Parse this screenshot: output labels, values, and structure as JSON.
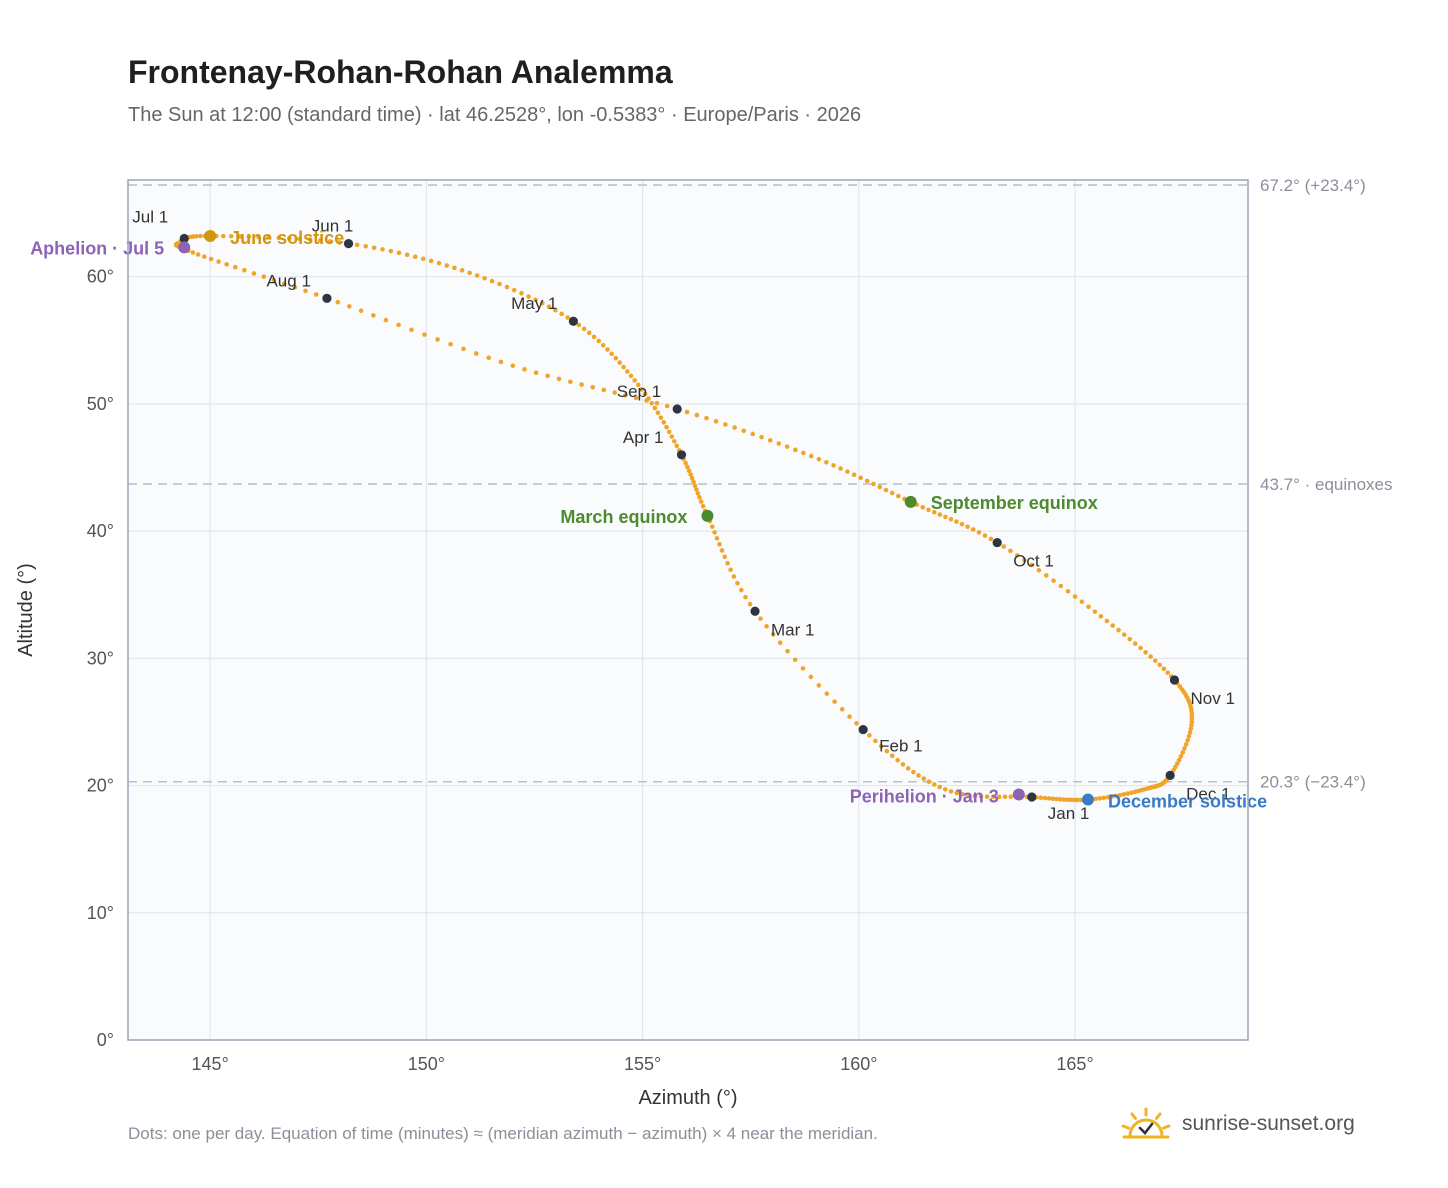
{
  "page": {
    "title": "Frontenay-Rohan-Rohan Analemma",
    "subtitle": "The Sun at 12:00 (standard time) · lat 46.2528°, lon -0.5383° · Europe/Paris · 2026",
    "footnote": "Dots: one per day. Equation of time (minutes) ≈ (meridian azimuth − azimuth) × 4 near the meridian.",
    "brand": "sunrise-sunset.org"
  },
  "colors": {
    "curve": "#f0a52a",
    "month_dot": "#2e3440",
    "solstice_june": "#d4950e",
    "solstice_december": "#3a7cc4",
    "equinox": "#4e8a2e",
    "apsis": "#8e63b5",
    "grid": "#e3e7ec",
    "plot_bg": "#f9fbfd",
    "frame": "#9aa6b4",
    "ref_line": "#b9c2cc"
  },
  "icons": {
    "brand": "sun-logo-icon"
  },
  "chart_data": {
    "type": "scatter",
    "xlabel": "Azimuth (°)",
    "ylabel": "Altitude (°)",
    "xlim": [
      143.1,
      169.0
    ],
    "ylim": [
      0,
      67.6
    ],
    "xticks": [
      145,
      150,
      155,
      160,
      165
    ],
    "xtick_labels": [
      "145°",
      "150°",
      "155°",
      "160°",
      "165°"
    ],
    "yticks": [
      0,
      10,
      20,
      30,
      40,
      50,
      60
    ],
    "ytick_labels": [
      "0°",
      "10°",
      "20°",
      "30°",
      "40°",
      "50°",
      "60°"
    ],
    "grid": true,
    "reference_lines": [
      {
        "y": 67.2,
        "label": "67.2° (+23.4°)"
      },
      {
        "y": 43.7,
        "label": "43.7° · equinoxes"
      },
      {
        "y": 20.3,
        "label": "20.3° (−23.4°)"
      }
    ],
    "analemma_path": [
      [
        164.0,
        19.1
      ],
      [
        162.0,
        19.7
      ],
      [
        160.1,
        24.4
      ],
      [
        157.6,
        33.7
      ],
      [
        156.5,
        41.2
      ],
      [
        155.9,
        46.0
      ],
      [
        154.9,
        51.5
      ],
      [
        153.4,
        56.5
      ],
      [
        151.0,
        60.3
      ],
      [
        148.2,
        62.6
      ],
      [
        145.0,
        63.2
      ],
      [
        144.3,
        62.7
      ],
      [
        144.6,
        61.9
      ],
      [
        147.7,
        58.3
      ],
      [
        152.0,
        53.0
      ],
      [
        155.8,
        49.6
      ],
      [
        158.9,
        45.9
      ],
      [
        161.2,
        42.3
      ],
      [
        163.2,
        39.1
      ],
      [
        165.6,
        33.3
      ],
      [
        167.3,
        28.3
      ],
      [
        167.7,
        25.0
      ],
      [
        167.2,
        20.8
      ],
      [
        166.6,
        19.7
      ],
      [
        165.3,
        18.9
      ],
      [
        164.0,
        19.1
      ]
    ],
    "day_count": 365,
    "months": [
      {
        "label": "Jan 1",
        "az": 164.0,
        "alt": 19.1
      },
      {
        "label": "Feb 1",
        "az": 160.1,
        "alt": 24.4
      },
      {
        "label": "Mar 1",
        "az": 157.6,
        "alt": 33.7
      },
      {
        "label": "Apr 1",
        "az": 155.9,
        "alt": 46.0
      },
      {
        "label": "May 1",
        "az": 153.4,
        "alt": 56.5
      },
      {
        "label": "Jun 1",
        "az": 148.2,
        "alt": 62.6
      },
      {
        "label": "Jul 1",
        "az": 144.4,
        "alt": 63.0
      },
      {
        "label": "Aug 1",
        "az": 147.7,
        "alt": 58.3
      },
      {
        "label": "Sep 1",
        "az": 155.8,
        "alt": 49.6
      },
      {
        "label": "Oct 1",
        "az": 163.2,
        "alt": 39.1
      },
      {
        "label": "Nov 1",
        "az": 167.3,
        "alt": 28.3
      },
      {
        "label": "Dec 1",
        "az": 167.2,
        "alt": 20.8
      }
    ],
    "events": [
      {
        "label": "June solstice",
        "az": 145.0,
        "alt": 63.2,
        "color": "#d4950e"
      },
      {
        "label": "December solstice",
        "az": 165.3,
        "alt": 18.9,
        "color": "#3a7cc4"
      },
      {
        "label": "March equinox",
        "az": 156.5,
        "alt": 41.2,
        "color": "#4e8a2e"
      },
      {
        "label": "September equinox",
        "az": 161.2,
        "alt": 42.3,
        "color": "#4e8a2e"
      },
      {
        "label": "Aphelion · Jul 5",
        "az": 144.4,
        "alt": 62.3,
        "color": "#8e63b5"
      },
      {
        "label": "Perihelion · Jan 3",
        "az": 163.7,
        "alt": 19.3,
        "color": "#8e63b5"
      }
    ]
  }
}
